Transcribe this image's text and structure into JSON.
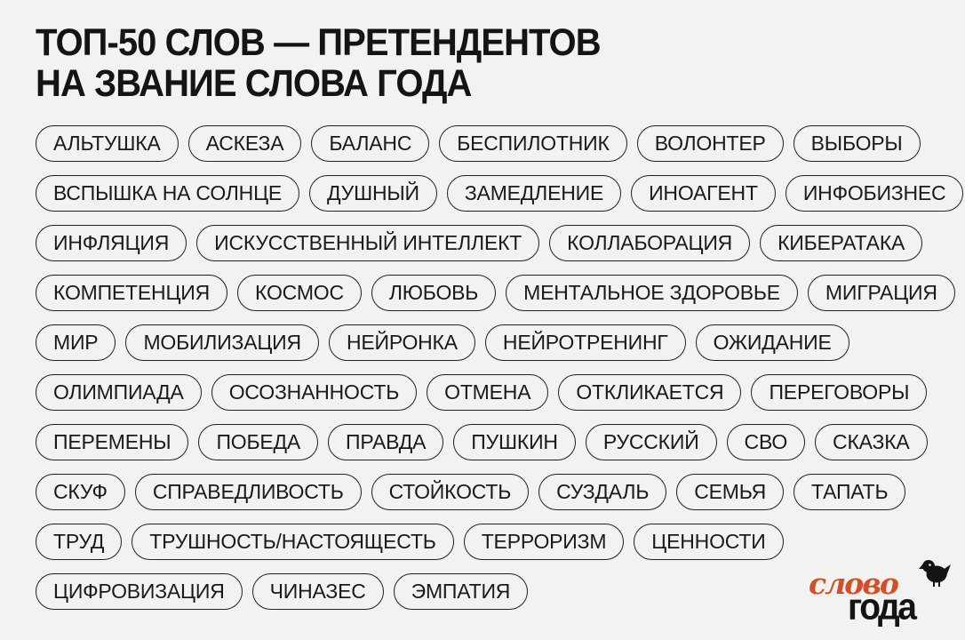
{
  "header": {
    "title_line1": "ТОП-50 СЛОВ — ПРЕТЕНДЕНТОВ",
    "title_line2": "НА ЗВАНИЕ СЛОВА ГОДА"
  },
  "words": {
    "rows": [
      [
        "АЛЬТУШКА",
        "АСКЕЗА",
        "БАЛАНС",
        "БЕСПИЛОТНИК",
        "ВОЛОНТЕР",
        "ВЫБОРЫ"
      ],
      [
        "ВСПЫШКА НА СОЛНЦЕ",
        "ДУШНЫЙ",
        "ЗАМЕДЛЕНИЕ",
        "ИНОАГЕНТ",
        "ИНФОБИЗНЕС"
      ],
      [
        "ИНФЛЯЦИЯ",
        "ИСКУССТВЕННЫЙ ИНТЕЛЛЕКТ",
        "КОЛЛАБОРАЦИЯ",
        "КИБЕРАТАКА"
      ],
      [
        "КОМПЕТЕНЦИЯ",
        "КОСМОС",
        "ЛЮБОВЬ",
        "МЕНТАЛЬНОЕ ЗДОРОВЬЕ",
        "МИГРАЦИЯ"
      ],
      [
        "МИР",
        "МОБИЛИЗАЦИЯ",
        "НЕЙРОНКА",
        "НЕЙРОТРЕНИНГ",
        "ОЖИДАНИЕ"
      ],
      [
        "ОЛИМПИАДА",
        "ОСОЗНАННОСТЬ",
        "ОТМЕНА",
        "ОТКЛИКАЕТСЯ",
        "ПЕРЕГОВОРЫ"
      ],
      [
        "ПЕРЕМЕНЫ",
        "ПОБЕДА",
        "ПРАВДА",
        "ПУШКИН",
        "РУССКИЙ",
        "СВО",
        "СКАЗКА"
      ],
      [
        "СКУФ",
        "СПРАВЕДЛИВОСТЬ",
        "СТОЙКОСТЬ",
        "СУЗДАЛЬ",
        "СЕМЬЯ",
        "ТАПАТЬ"
      ],
      [
        "ТРУД",
        "ТРУШНОСТЬ/НАСТОЯЩЕСТЬ",
        "ТЕРРОРИЗМ",
        "ЦЕННОСТИ"
      ],
      [
        "ЦИФРОВИЗАЦИЯ",
        "ЧИНАЗЕС",
        "ЭМПАТИЯ"
      ]
    ]
  },
  "logo": {
    "line1": "слово",
    "line2": "года",
    "bird_icon": "bird-icon"
  },
  "colors": {
    "background": "#f2f2f0",
    "text": "#1a1a1a",
    "pill_border": "#222222",
    "title": "#141414",
    "logo_orange": "#d1502a"
  }
}
